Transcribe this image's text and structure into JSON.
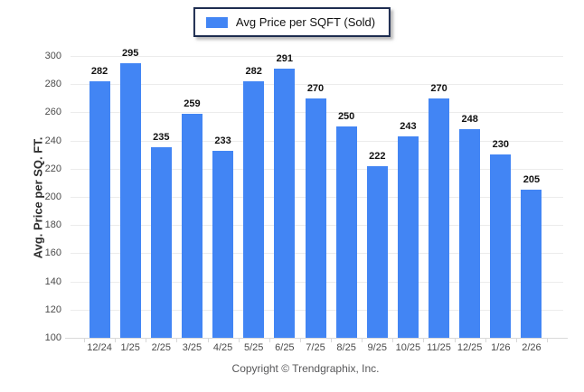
{
  "legend": {
    "label": "Avg Price per SQFT (Sold)"
  },
  "footer": {
    "text": "Copyright © Trendgraphix, Inc."
  },
  "colors": {
    "bar": "#4285f4",
    "gridline": "#ececec",
    "axis_line": "#d9d9d9",
    "tick_text": "#4a4a4a",
    "value_text": "#111111",
    "legend_border": "#1e2d50",
    "footer_text": "#58585a"
  },
  "chart_data": {
    "type": "bar",
    "title": "",
    "series_name": "Avg Price per SQFT (Sold)",
    "categories": [
      "12/24",
      "1/25",
      "2/25",
      "3/25",
      "4/25",
      "5/25",
      "6/25",
      "7/25",
      "8/25",
      "9/25",
      "10/25",
      "11/25",
      "12/25",
      "1/26",
      "2/26"
    ],
    "values": [
      282,
      295,
      235,
      259,
      233,
      282,
      291,
      270,
      250,
      222,
      243,
      270,
      248,
      230,
      205
    ],
    "xlabel": "",
    "ylabel": "Avg. Price per SQ. FT.",
    "ylim": [
      100,
      300
    ],
    "ytick_step": 20,
    "grid": true,
    "legend_position": "top-center"
  }
}
